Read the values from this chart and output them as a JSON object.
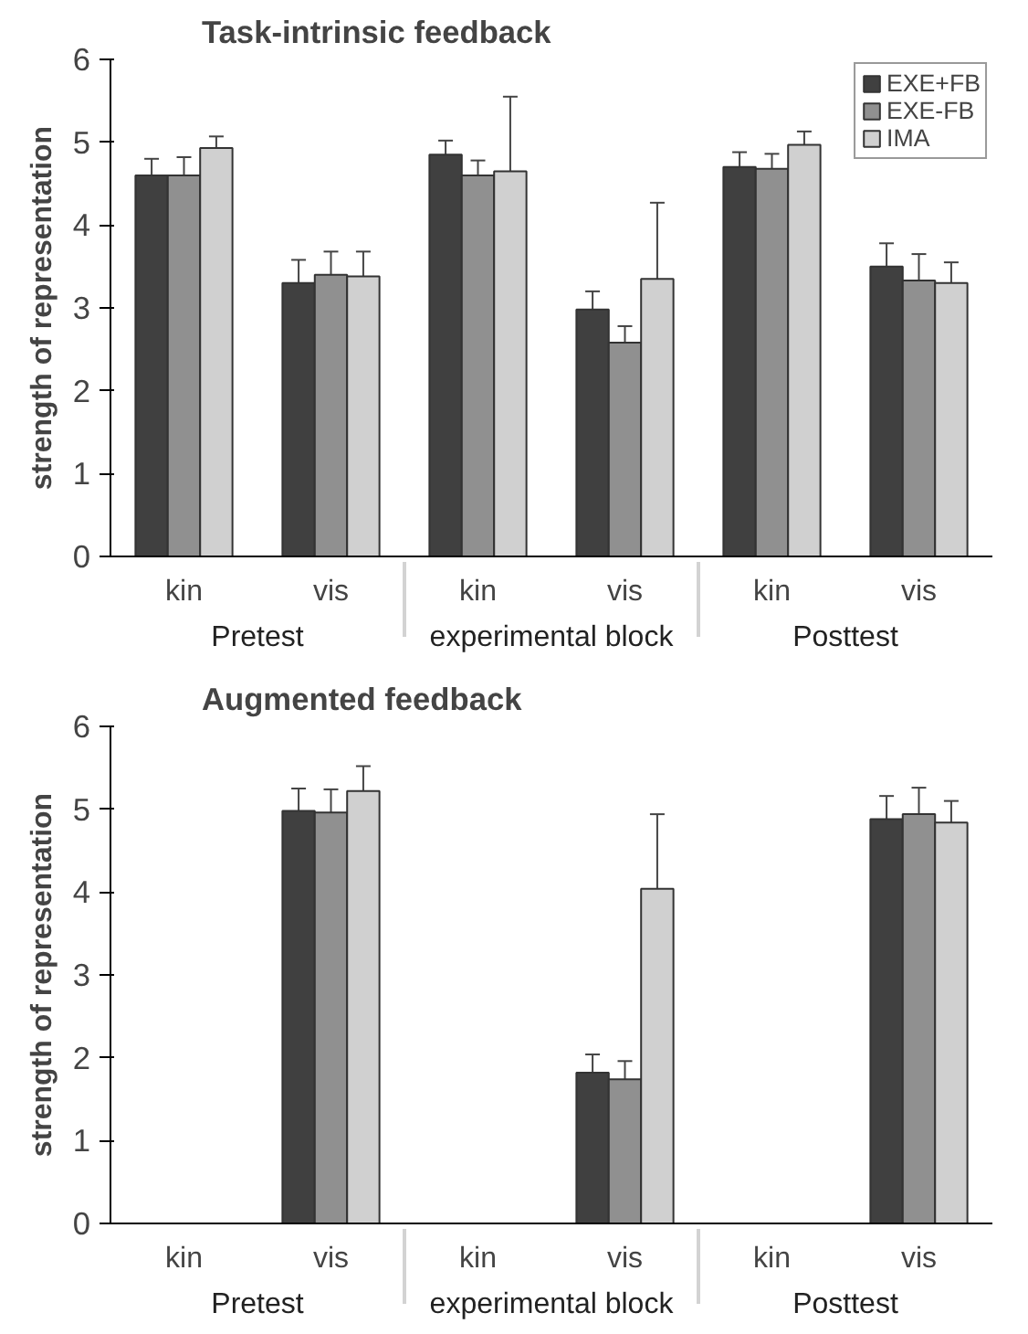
{
  "chart_data": [
    {
      "type": "bar",
      "title": "Task-intrinsic feedback",
      "ylabel": "strength of representation",
      "categories": [
        "kin",
        "vis",
        "kin",
        "vis",
        "kin",
        "vis"
      ],
      "annotations": [
        "Pretest",
        "experimental block",
        "Posttest"
      ],
      "ylim": [
        0,
        6
      ],
      "yticks": [
        0,
        1,
        2,
        3,
        4,
        5,
        6
      ],
      "grid": false,
      "legend": "top right",
      "series": [
        {
          "name": "EXE+FB",
          "color": "#404040",
          "values": [
            4.6,
            3.3,
            4.85,
            2.98,
            4.7,
            3.5
          ],
          "errors": [
            [
              4.6,
              4.8
            ],
            [
              3.3,
              3.58
            ],
            [
              4.85,
              5.02
            ],
            [
              2.98,
              3.2
            ],
            [
              4.7,
              4.88
            ],
            [
              3.5,
              3.78
            ]
          ]
        },
        {
          "name": "EXE-FB",
          "color": "#909090",
          "values": [
            4.6,
            3.4,
            4.6,
            2.58,
            4.68,
            3.33
          ],
          "errors": [
            [
              4.6,
              4.82
            ],
            [
              3.4,
              3.68
            ],
            [
              4.6,
              4.78
            ],
            [
              2.58,
              2.78
            ],
            [
              4.68,
              4.86
            ],
            [
              3.33,
              3.65
            ]
          ]
        },
        {
          "name": "IMA",
          "color": "#d0d0d0",
          "values": [
            4.93,
            3.38,
            4.65,
            3.35,
            4.97,
            3.3
          ],
          "errors": [
            [
              4.93,
              5.07
            ],
            [
              3.38,
              3.68
            ],
            [
              4.65,
              5.55
            ],
            [
              3.35,
              4.27
            ],
            [
              4.97,
              5.13
            ],
            [
              3.3,
              3.55
            ]
          ]
        }
      ]
    },
    {
      "type": "bar",
      "title": "Augmented feedback",
      "ylabel": "strength of representation",
      "categories": [
        "kin",
        "vis",
        "kin",
        "vis",
        "kin",
        "vis"
      ],
      "annotations": [
        "Pretest",
        "experimental block",
        "Posttest"
      ],
      "ylim": [
        0,
        6
      ],
      "yticks": [
        0,
        1,
        2,
        3,
        4,
        5,
        6
      ],
      "grid": false,
      "legend": false,
      "series": [
        {
          "color": "#404040",
          "values": [
            null,
            4.98,
            null,
            1.82,
            null,
            4.88
          ],
          "errors": [
            null,
            [
              4.98,
              5.25
            ],
            null,
            [
              1.82,
              2.04
            ],
            null,
            [
              4.88,
              5.16
            ]
          ]
        },
        {
          "color": "#909090",
          "values": [
            null,
            4.96,
            null,
            1.74,
            null,
            4.94
          ],
          "errors": [
            null,
            [
              4.96,
              5.24
            ],
            null,
            [
              1.74,
              1.96
            ],
            null,
            [
              4.94,
              5.26
            ]
          ]
        },
        {
          "color": "#d0d0d0",
          "values": [
            null,
            5.22,
            null,
            4.04,
            null,
            4.84
          ],
          "errors": [
            null,
            [
              5.22,
              5.52
            ],
            null,
            [
              4.04,
              4.94
            ],
            null,
            [
              4.84,
              5.1
            ]
          ]
        }
      ]
    }
  ]
}
